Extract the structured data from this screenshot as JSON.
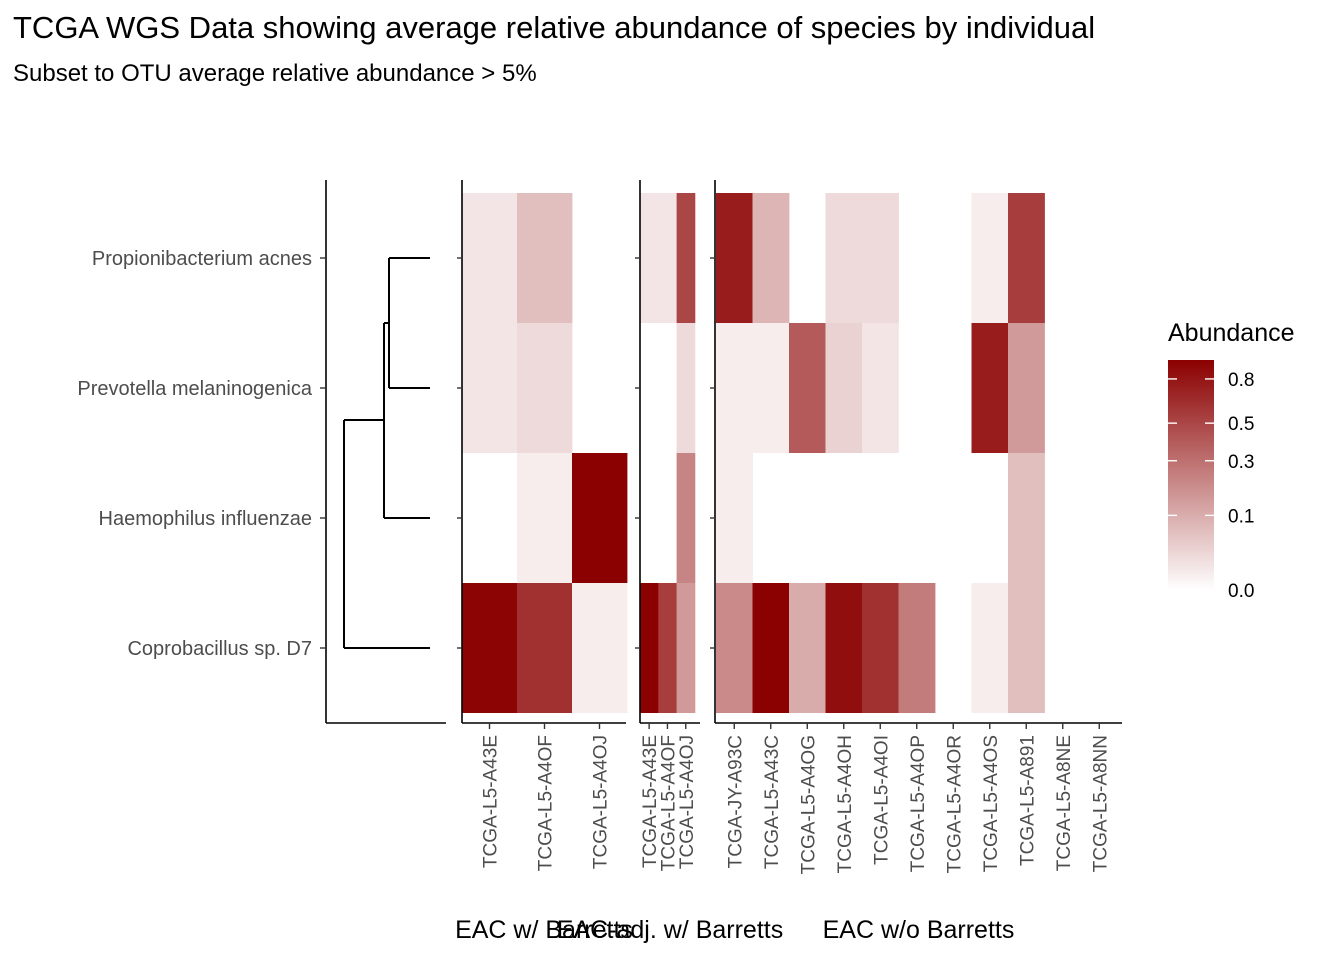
{
  "chart_data": {
    "type": "heatmap",
    "title": "TCGA WGS Data showing average relative abundance of species by individual",
    "subtitle": "Subset to OTU average relative abundance > 5%",
    "species": [
      "Propionibacterium acnes",
      "Prevotella melaninogenica",
      "Haemophilus influenzae",
      "Coprobacillus sp. D7"
    ],
    "facets": [
      {
        "label": "EAC w/ Barretts",
        "samples": [
          "TCGA-L5-A43E",
          "TCGA-L5-A4OF",
          "TCGA-L5-A4OJ"
        ],
        "values": [
          [
            0.01,
            0.06,
            null
          ],
          [
            0.01,
            0.02,
            null
          ],
          [
            null,
            0.005,
            0.95
          ],
          [
            0.92,
            0.62,
            0.005
          ]
        ]
      },
      {
        "label": "EAC-adj. w/ Barretts",
        "samples": [
          "TCGA-L5-A43E",
          "TCGA-L5-A4OF",
          "TCGA-L5-A4OJ"
        ],
        "values": [
          [
            0.01,
            0.01,
            0.5
          ],
          [
            null,
            null,
            0.02
          ],
          [
            null,
            null,
            0.22
          ],
          [
            0.95,
            0.55,
            0.15
          ]
        ]
      },
      {
        "label": "EAC w/o Barretts",
        "samples": [
          "TCGA-JY-A93C",
          "TCGA-L5-A43C",
          "TCGA-L5-A4OG",
          "TCGA-L5-A4OH",
          "TCGA-L5-A4OI",
          "TCGA-L5-A4OP",
          "TCGA-L5-A4OR",
          "TCGA-L5-A4OS",
          "TCGA-L5-A891",
          "TCGA-L5-A8NE",
          "TCGA-L5-A8NN"
        ],
        "values": [
          [
            0.75,
            0.08,
            null,
            0.02,
            0.02,
            null,
            null,
            0.005,
            0.55,
            null,
            null
          ],
          [
            0.005,
            0.005,
            0.4,
            0.03,
            0.01,
            null,
            null,
            0.75,
            0.15,
            null,
            null
          ],
          [
            0.005,
            null,
            null,
            null,
            null,
            null,
            null,
            null,
            0.06,
            null,
            null
          ],
          [
            0.2,
            0.95,
            0.1,
            0.85,
            0.62,
            0.25,
            null,
            0.005,
            0.06,
            null,
            null
          ]
        ]
      }
    ],
    "legend": {
      "title": "Abundance",
      "ticks": [
        "0.8",
        "0.5",
        "0.3",
        "0.1",
        "0.0"
      ],
      "tick_values": [
        0.8,
        0.5,
        0.3,
        0.1,
        0.0
      ],
      "scale": "sqrt",
      "range": [
        0,
        0.95
      ],
      "low_color": "#ffffff",
      "high_color": "#8b0000",
      "placement": "right"
    },
    "dendrogram": "left of rows; Propionibacterium acnes and Prevotella melaninogenica merge first, then Haemophilus influenzae, then Coprobacillus sp. D7"
  }
}
